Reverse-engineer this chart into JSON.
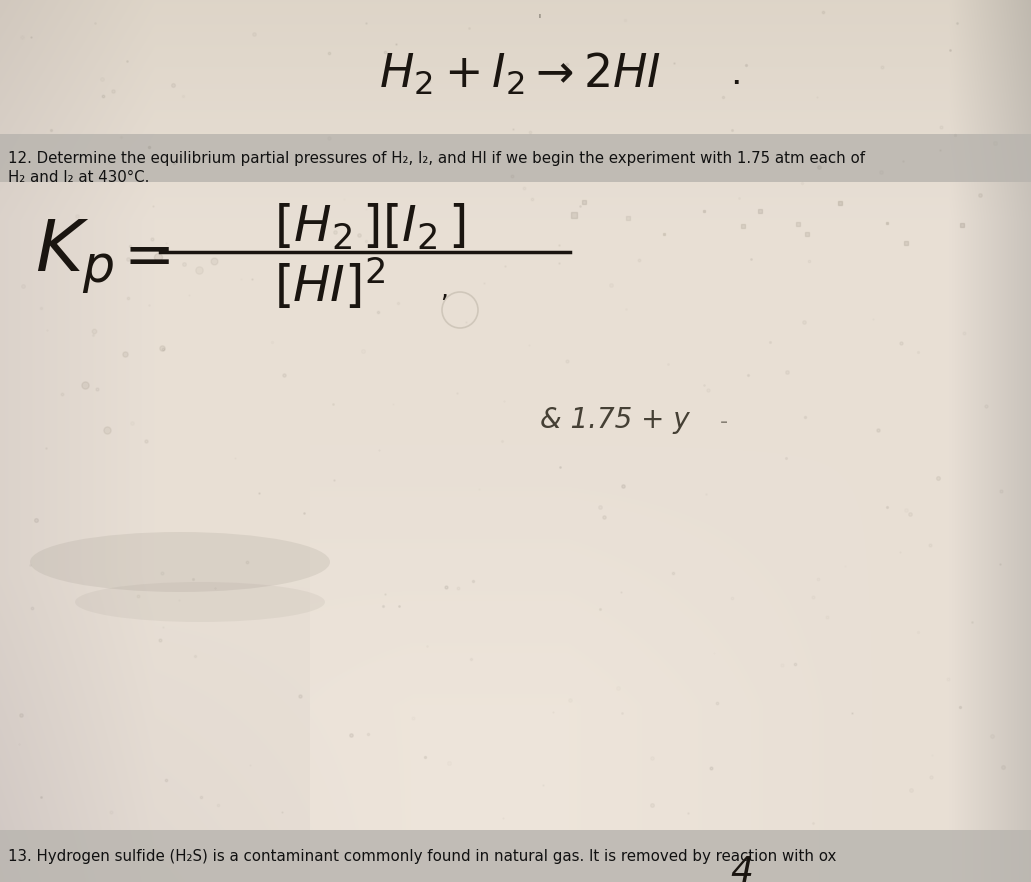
{
  "fig_width": 10.31,
  "fig_height": 8.82,
  "dpi": 100,
  "colors": {
    "top_left_bg": "#b8b0a0",
    "top_right_bg": "#c8c0b0",
    "center_paper": "#e8e2d8",
    "bottom_center": "#dedad2",
    "bottom_left": "#c0b8a8",
    "bottom_right_edge": "#b0aaa0",
    "highlight_band": "#b8b4ae",
    "bottom_band": "#bab6b0",
    "text_dark": "#111111",
    "text_handwrite": "#1a1510",
    "annotation_color": "#555045"
  },
  "q12_line1": "12. Determine the equilibrium partial pressures of H₂, I₂, and HI if we begin the experiment with 1.75 atm each of",
  "q12_line2": "H₂ and I₂ at 430°C.",
  "q13_text": "13. Hydrogen sulfide (H₂S) is a contaminant commonly found in natural gas. It is removed by reaction with ox",
  "bottom_num": "4",
  "annotation": "& 1.75 + y"
}
